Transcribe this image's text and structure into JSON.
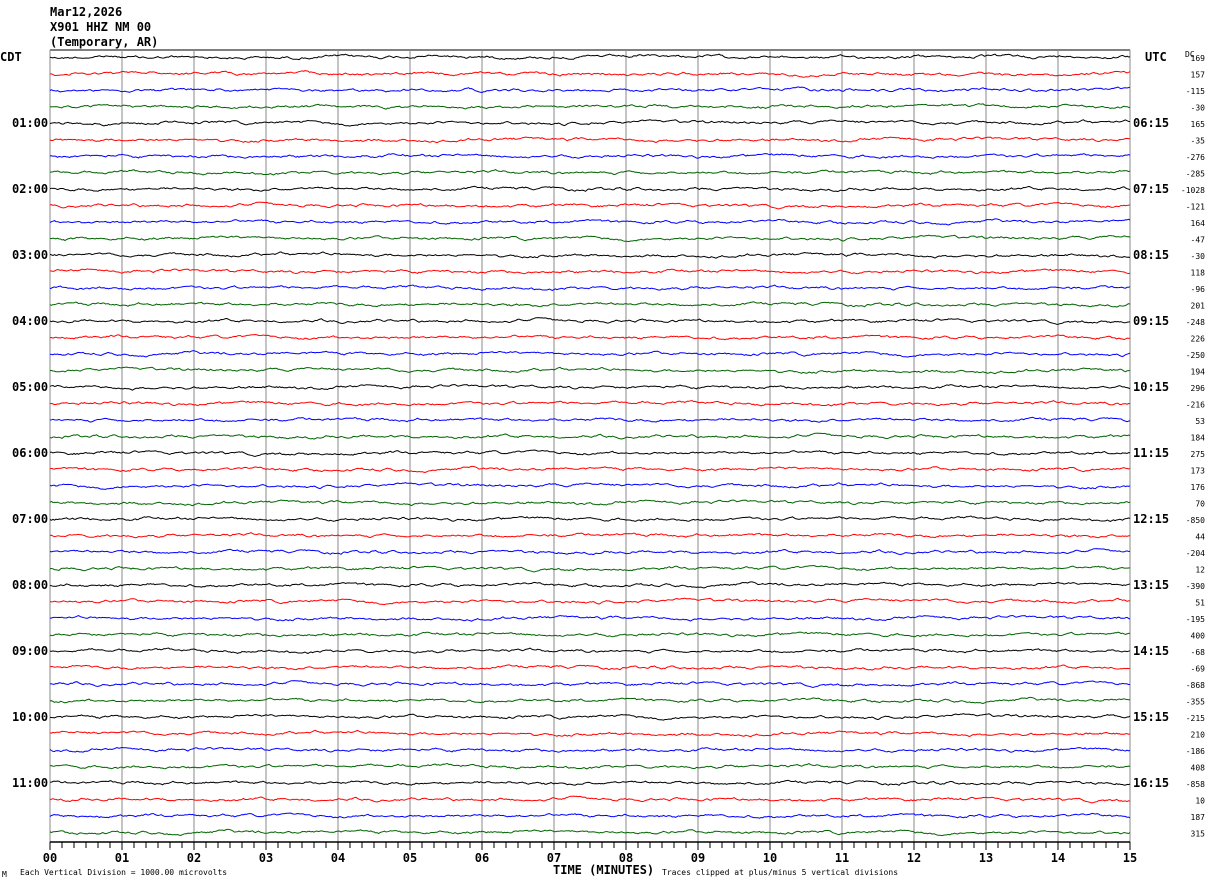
{
  "header": {
    "date": "Mar12,2026",
    "station": "X901 HHZ NM 00",
    "network": "(Temporary, AR)"
  },
  "chart_data": {
    "type": "line",
    "subtype": "helicorder",
    "left_timezone": "CDT",
    "right_timezone": "UTC",
    "dc_label": "DC",
    "left_hour_labels": [
      "01:00",
      "02:00",
      "03:00",
      "04:00",
      "05:00",
      "06:00",
      "07:00",
      "08:00",
      "09:00",
      "10:00",
      "11:00"
    ],
    "right_hour_labels": [
      "06:15",
      "07:15",
      "08:15",
      "09:15",
      "10:15",
      "11:15",
      "12:15",
      "13:15",
      "14:15",
      "15:15",
      "16:15"
    ],
    "traces_per_hour": 4,
    "trace_colors": [
      "#000000",
      "#ff0000",
      "#0000ff",
      "#006400"
    ],
    "dc_offsets": [
      169,
      157,
      -115,
      -30,
      165,
      -35,
      -276,
      -285,
      -1028,
      -121,
      164,
      -47,
      -30,
      118,
      -96,
      201,
      -248,
      226,
      -250,
      194,
      296,
      -216,
      53,
      184,
      275,
      173,
      176,
      70,
      -850,
      44,
      -204,
      12,
      -390,
      51,
      -195,
      400,
      -68,
      -69,
      -868,
      -355,
      -215,
      210,
      -186,
      408,
      -858,
      10,
      187,
      315
    ],
    "x_ticks": [
      "00",
      "01",
      "02",
      "03",
      "04",
      "05",
      "06",
      "07",
      "08",
      "09",
      "10",
      "11",
      "12",
      "13",
      "14",
      "15"
    ],
    "xlabel": "TIME (MINUTES)",
    "xlim": [
      0,
      15
    ],
    "grid": true
  },
  "footer": {
    "scale_note": "Each Vertical Division = 1000.00 microvolts",
    "clip_note": "Traces clipped at plus/minus 5 vertical divisions",
    "corner_mark": "M"
  }
}
